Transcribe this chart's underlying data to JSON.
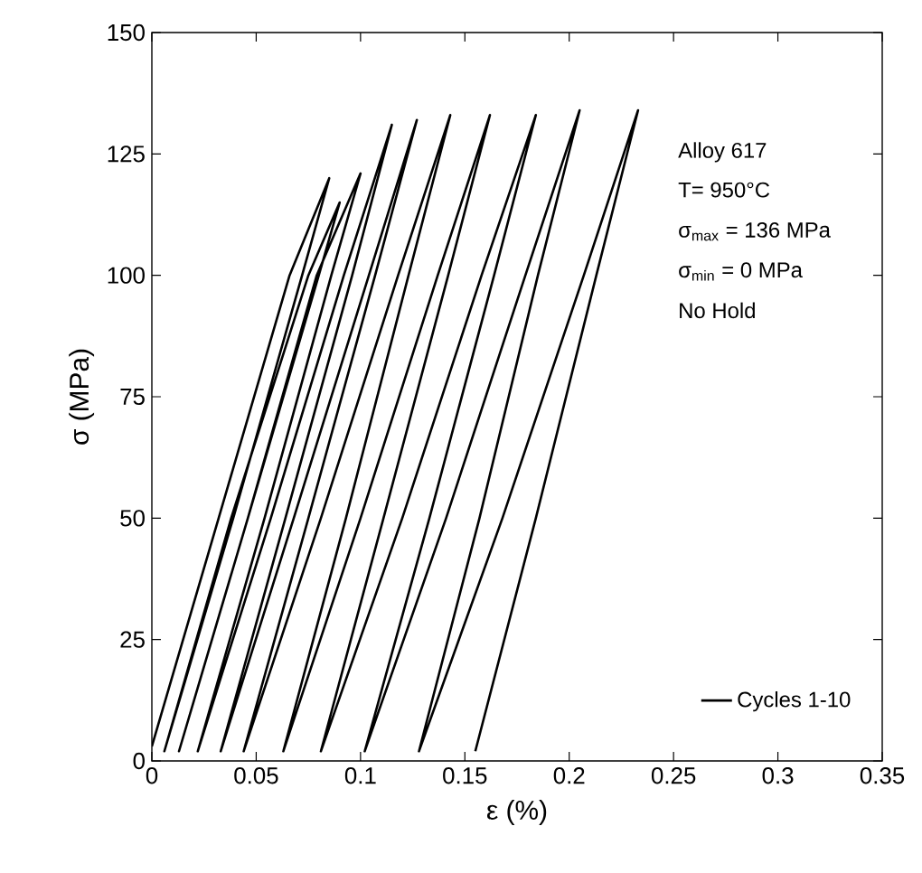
{
  "chart_data": {
    "type": "line",
    "xlabel": "ε (%)",
    "ylabel": "σ (MPa)",
    "xlim": [
      0,
      0.35
    ],
    "ylim": [
      0,
      150
    ],
    "xticks": [
      0,
      0.05,
      0.1,
      0.15,
      0.2,
      0.25,
      0.3,
      0.35
    ],
    "yticks": [
      0,
      25,
      50,
      75,
      100,
      125,
      150
    ],
    "grid": false,
    "legend": "bottom right",
    "marker": "none",
    "line_style": "solid",
    "annotations": [
      "Alloy 617",
      "T= 950°C",
      "σ$_{max}$ = 136 MPa",
      "σ$_{min}$ = 0 MPa",
      "No Hold"
    ],
    "series": [
      {
        "name": "Cycles 1-10",
        "color": "#000000",
        "x": [
          0,
          0.032,
          0.066,
          0.085,
          0.072,
          0.039,
          0.006,
          0.038,
          0.075,
          0.09,
          0.08,
          0.046,
          0.013,
          0.046,
          0.079,
          0.1,
          0.086,
          0.054,
          0.022,
          0.057,
          0.092,
          0.115,
          0.096,
          0.064,
          0.033,
          0.068,
          0.104,
          0.127,
          0.107,
          0.075,
          0.044,
          0.081,
          0.118,
          0.143,
          0.123,
          0.093,
          0.063,
          0.1,
          0.137,
          0.162,
          0.142,
          0.111,
          0.081,
          0.12,
          0.158,
          0.184,
          0.164,
          0.133,
          0.102,
          0.141,
          0.179,
          0.205,
          0.185,
          0.157,
          0.128,
          0.168,
          0.207,
          0.233,
          0.213,
          0.184,
          0.155
        ],
        "values": [
          3,
          50,
          100,
          120,
          100,
          50,
          2,
          50,
          100,
          115,
          100,
          50,
          2,
          50,
          100,
          121,
          100,
          50,
          2,
          50,
          100,
          131,
          100,
          50,
          2,
          50,
          100,
          132,
          100,
          50,
          2,
          50,
          100,
          133,
          100,
          50,
          2,
          50,
          100,
          133,
          100,
          50,
          2,
          50,
          100,
          133,
          100,
          50,
          2,
          50,
          100,
          134,
          100,
          50,
          2,
          50,
          100,
          134,
          100,
          50,
          2
        ]
      }
    ]
  }
}
